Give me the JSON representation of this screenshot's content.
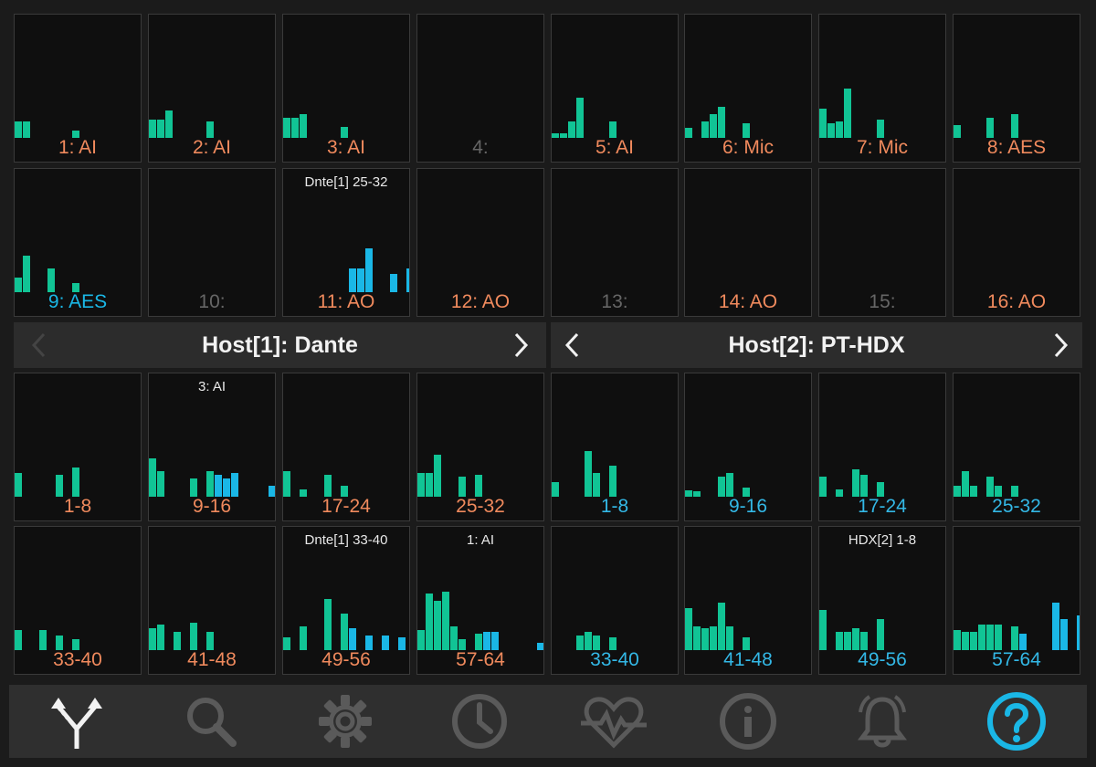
{
  "colors": {
    "green": "#11c495",
    "blue": "#1ab7e6",
    "orange": "#f08a5d",
    "gray": "#666666",
    "blueLabel": "#33b8e6"
  },
  "tiles": [
    {
      "label": "1: AI",
      "color": "orange",
      "bars": [
        [
          0,
          18,
          "g"
        ],
        [
          9,
          18,
          "g"
        ],
        [
          63,
          8,
          "g"
        ]
      ]
    },
    {
      "label": "2: AI",
      "color": "orange",
      "bars": [
        [
          0,
          20,
          "g"
        ],
        [
          9,
          20,
          "g"
        ],
        [
          18,
          30,
          "g"
        ],
        [
          63,
          18,
          "g"
        ]
      ]
    },
    {
      "label": "3: AI",
      "color": "orange",
      "bars": [
        [
          0,
          22,
          "g"
        ],
        [
          9,
          22,
          "g"
        ],
        [
          18,
          26,
          "g"
        ],
        [
          63,
          12,
          "g"
        ]
      ]
    },
    {
      "label": "4:",
      "color": "gray",
      "bars": []
    },
    {
      "label": "5: AI",
      "color": "orange",
      "bars": [
        [
          0,
          5,
          "g"
        ],
        [
          9,
          5,
          "g"
        ],
        [
          18,
          18,
          "g"
        ],
        [
          27,
          44,
          "g"
        ],
        [
          63,
          18,
          "g"
        ]
      ]
    },
    {
      "label": "6: Mic",
      "color": "orange",
      "bars": [
        [
          0,
          11,
          "g"
        ],
        [
          18,
          18,
          "g"
        ],
        [
          27,
          26,
          "g"
        ],
        [
          36,
          34,
          "g"
        ],
        [
          63,
          16,
          "g"
        ]
      ]
    },
    {
      "label": "7: Mic",
      "color": "orange",
      "bars": [
        [
          0,
          32,
          "g"
        ],
        [
          9,
          16,
          "g"
        ],
        [
          18,
          18,
          "g"
        ],
        [
          27,
          54,
          "g"
        ],
        [
          63,
          20,
          "g"
        ]
      ]
    },
    {
      "label": "8: AES",
      "color": "orange",
      "bars": [
        [
          0,
          14,
          "g"
        ],
        [
          36,
          22,
          "g"
        ],
        [
          63,
          26,
          "g"
        ]
      ]
    },
    {
      "label": "9: AES",
      "color": "blue",
      "bars": [
        [
          0,
          16,
          "g"
        ],
        [
          9,
          40,
          "g"
        ],
        [
          36,
          26,
          "g"
        ],
        [
          63,
          10,
          "g"
        ]
      ]
    },
    {
      "label": "10:",
      "color": "gray",
      "bars": []
    },
    {
      "label": "11: AO",
      "color": "orange",
      "top": "Dnte[1] 25-32",
      "bars": [
        [
          72,
          26,
          "b"
        ],
        [
          81,
          26,
          "b"
        ],
        [
          90,
          48,
          "b"
        ],
        [
          117,
          20,
          "b"
        ],
        [
          135,
          26,
          "b"
        ]
      ]
    },
    {
      "label": "12: AO",
      "color": "orange",
      "bars": []
    },
    {
      "label": "13:",
      "color": "gray",
      "bars": []
    },
    {
      "label": "14: AO",
      "color": "orange",
      "bars": []
    },
    {
      "label": "15:",
      "color": "gray",
      "bars": []
    },
    {
      "label": "16: AO",
      "color": "orange",
      "bars": []
    },
    {
      "label": "1-8",
      "color": "orange",
      "bars": [
        [
          0,
          26,
          "g"
        ],
        [
          45,
          24,
          "g"
        ],
        [
          63,
          32,
          "g"
        ]
      ]
    },
    {
      "label": "9-16",
      "color": "orange",
      "top": "3: AI",
      "bars": [
        [
          0,
          42,
          "g"
        ],
        [
          9,
          28,
          "g"
        ],
        [
          45,
          20,
          "g"
        ],
        [
          63,
          28,
          "g"
        ],
        [
          72,
          24,
          "b"
        ],
        [
          81,
          20,
          "b"
        ],
        [
          90,
          26,
          "b"
        ],
        [
          131,
          12,
          "b"
        ]
      ]
    },
    {
      "label": "17-24",
      "color": "orange",
      "bars": [
        [
          0,
          28,
          "g"
        ],
        [
          18,
          8,
          "g"
        ],
        [
          45,
          24,
          "g"
        ],
        [
          63,
          12,
          "g"
        ]
      ]
    },
    {
      "label": "25-32",
      "color": "orange",
      "bars": [
        [
          0,
          26,
          "g"
        ],
        [
          9,
          26,
          "g"
        ],
        [
          18,
          46,
          "g"
        ],
        [
          45,
          22,
          "g"
        ],
        [
          63,
          24,
          "g"
        ]
      ]
    },
    {
      "label": "1-8",
      "color": "blueLabel",
      "bars": [
        [
          0,
          16,
          "g"
        ],
        [
          36,
          50,
          "g"
        ],
        [
          45,
          26,
          "g"
        ],
        [
          63,
          34,
          "g"
        ]
      ]
    },
    {
      "label": "9-16",
      "color": "blueLabel",
      "bars": [
        [
          0,
          7,
          "g"
        ],
        [
          9,
          6,
          "g"
        ],
        [
          36,
          22,
          "g"
        ],
        [
          45,
          26,
          "g"
        ],
        [
          63,
          10,
          "g"
        ]
      ]
    },
    {
      "label": "17-24",
      "color": "blueLabel",
      "bars": [
        [
          0,
          22,
          "g"
        ],
        [
          18,
          8,
          "g"
        ],
        [
          36,
          30,
          "g"
        ],
        [
          45,
          24,
          "g"
        ],
        [
          63,
          16,
          "g"
        ]
      ]
    },
    {
      "label": "25-32",
      "color": "blueLabel",
      "bars": [
        [
          0,
          12,
          "g"
        ],
        [
          9,
          28,
          "g"
        ],
        [
          18,
          12,
          "g"
        ],
        [
          36,
          22,
          "g"
        ],
        [
          45,
          12,
          "g"
        ],
        [
          63,
          12,
          "g"
        ]
      ]
    },
    {
      "label": "33-40",
      "color": "orange",
      "bars": [
        [
          0,
          22,
          "g"
        ],
        [
          27,
          22,
          "g"
        ],
        [
          45,
          16,
          "g"
        ],
        [
          63,
          12,
          "g"
        ]
      ]
    },
    {
      "label": "41-48",
      "color": "orange",
      "bars": [
        [
          0,
          24,
          "g"
        ],
        [
          9,
          28,
          "g"
        ],
        [
          27,
          20,
          "g"
        ],
        [
          45,
          30,
          "g"
        ],
        [
          63,
          20,
          "g"
        ]
      ]
    },
    {
      "label": "49-56",
      "color": "orange",
      "top": "Dnte[1] 33-40",
      "bars": [
        [
          0,
          14,
          "g"
        ],
        [
          18,
          26,
          "g"
        ],
        [
          45,
          56,
          "g"
        ],
        [
          63,
          40,
          "g"
        ],
        [
          72,
          24,
          "b"
        ],
        [
          90,
          16,
          "b"
        ],
        [
          108,
          16,
          "b"
        ],
        [
          126,
          14,
          "b"
        ]
      ]
    },
    {
      "label": "57-64",
      "color": "orange",
      "top": "1: AI",
      "bars": [
        [
          0,
          22,
          "g"
        ],
        [
          9,
          62,
          "g"
        ],
        [
          18,
          54,
          "g"
        ],
        [
          27,
          64,
          "g"
        ],
        [
          36,
          26,
          "g"
        ],
        [
          45,
          12,
          "g"
        ],
        [
          63,
          18,
          "g"
        ],
        [
          72,
          20,
          "b"
        ],
        [
          81,
          20,
          "b"
        ],
        [
          131,
          8,
          "b"
        ]
      ]
    },
    {
      "label": "33-40",
      "color": "blueLabel",
      "bars": [
        [
          27,
          16,
          "g"
        ],
        [
          36,
          20,
          "g"
        ],
        [
          45,
          16,
          "g"
        ],
        [
          63,
          14,
          "g"
        ]
      ]
    },
    {
      "label": "41-48",
      "color": "blueLabel",
      "bars": [
        [
          0,
          46,
          "g"
        ],
        [
          9,
          26,
          "g"
        ],
        [
          18,
          24,
          "g"
        ],
        [
          27,
          26,
          "g"
        ],
        [
          36,
          52,
          "g"
        ],
        [
          45,
          26,
          "g"
        ],
        [
          63,
          14,
          "g"
        ]
      ]
    },
    {
      "label": "49-56",
      "color": "blueLabel",
      "top": "HDX[2] 1-8",
      "bars": [
        [
          0,
          44,
          "g"
        ],
        [
          18,
          20,
          "g"
        ],
        [
          27,
          20,
          "g"
        ],
        [
          36,
          24,
          "g"
        ],
        [
          45,
          20,
          "g"
        ],
        [
          63,
          34,
          "g"
        ]
      ]
    },
    {
      "label": "57-64",
      "color": "blueLabel",
      "bars": [
        [
          0,
          22,
          "g"
        ],
        [
          9,
          20,
          "g"
        ],
        [
          18,
          20,
          "g"
        ],
        [
          27,
          28,
          "g"
        ],
        [
          36,
          28,
          "g"
        ],
        [
          45,
          28,
          "g"
        ],
        [
          63,
          26,
          "g"
        ],
        [
          72,
          18,
          "b"
        ],
        [
          108,
          52,
          "b"
        ],
        [
          117,
          34,
          "b"
        ],
        [
          135,
          38,
          "b"
        ]
      ]
    }
  ],
  "hosts": [
    {
      "title": "Host[1]: Dante",
      "prev_enabled": false,
      "next_enabled": true
    },
    {
      "title": "Host[2]: PT-HDX",
      "prev_enabled": true,
      "next_enabled": true
    }
  ],
  "dock": [
    {
      "icon": "routing-icon",
      "active": true
    },
    {
      "icon": "search-icon",
      "active": false
    },
    {
      "icon": "gear-icon",
      "active": false
    },
    {
      "icon": "clock-icon",
      "active": false
    },
    {
      "icon": "heartbeat-icon",
      "active": false
    },
    {
      "icon": "info-icon",
      "active": false
    },
    {
      "icon": "alarm-bell-icon",
      "active": false
    },
    {
      "icon": "help-icon",
      "active": false,
      "selected": true
    }
  ]
}
